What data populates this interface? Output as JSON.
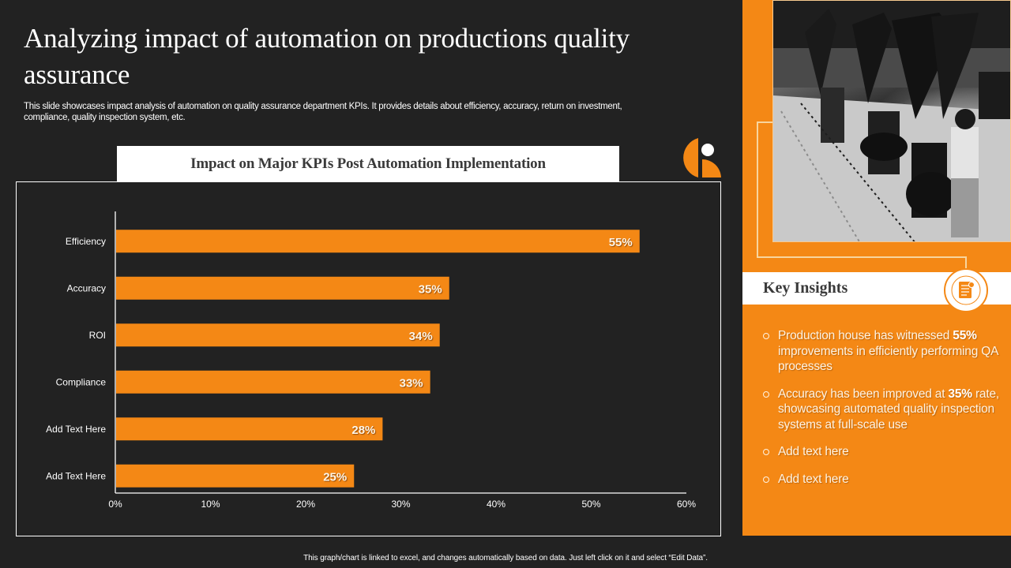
{
  "slide": {
    "title": "Analyzing impact of automation on productions quality assurance",
    "subtitle": "This slide showcases impact analysis of automation on quality assurance department KPIs. It provides details about efficiency, accuracy, return on investment, compliance, quality inspection system, etc.",
    "footnote": "This graph/chart is linked to excel, and changes automatically based on data. Just left click on it and select “Edit Data”."
  },
  "colors": {
    "background": "#222222",
    "accent": "#f48815",
    "bar": "#f48815",
    "text_light": "#ffffff",
    "text_dark": "#3a3a3a"
  },
  "chart_data": {
    "type": "bar",
    "orientation": "horizontal",
    "title": "Impact on Major KPIs Post Automation Implementation",
    "categories": [
      "Efficiency",
      "Accuracy",
      "ROI",
      "Compliance",
      "Add Text Here",
      "Add Text Here"
    ],
    "values": [
      55,
      35,
      34,
      33,
      28,
      25
    ],
    "value_labels": [
      "55%",
      "35%",
      "34%",
      "33%",
      "28%",
      "25%"
    ],
    "xlabel": "",
    "ylabel": "",
    "xlim": [
      0,
      60
    ],
    "xticks": [
      0,
      10,
      20,
      30,
      40,
      50,
      60
    ],
    "xtick_labels": [
      "0%",
      "10%",
      "20%",
      "30%",
      "40%",
      "50%",
      "60%"
    ],
    "grid": false,
    "legend": "none"
  },
  "insights": {
    "title": "Key Insights",
    "icon": "document-list-icon",
    "items": [
      {
        "pre": "Production house has witnessed ",
        "bold": "55%",
        "post": " improvements in efficiently performing QA processes"
      },
      {
        "pre": "Accuracy has been improved at ",
        "bold": "35%",
        "post": " rate, showcasing automated quality inspection systems at full-scale use"
      },
      {
        "pre": "Add text here",
        "bold": "",
        "post": ""
      },
      {
        "pre": "Add text here",
        "bold": "",
        "post": ""
      }
    ]
  },
  "photo": {
    "description": "factory-assembly-line-photo"
  },
  "logo": {
    "icon": "brand-logo-icon"
  }
}
